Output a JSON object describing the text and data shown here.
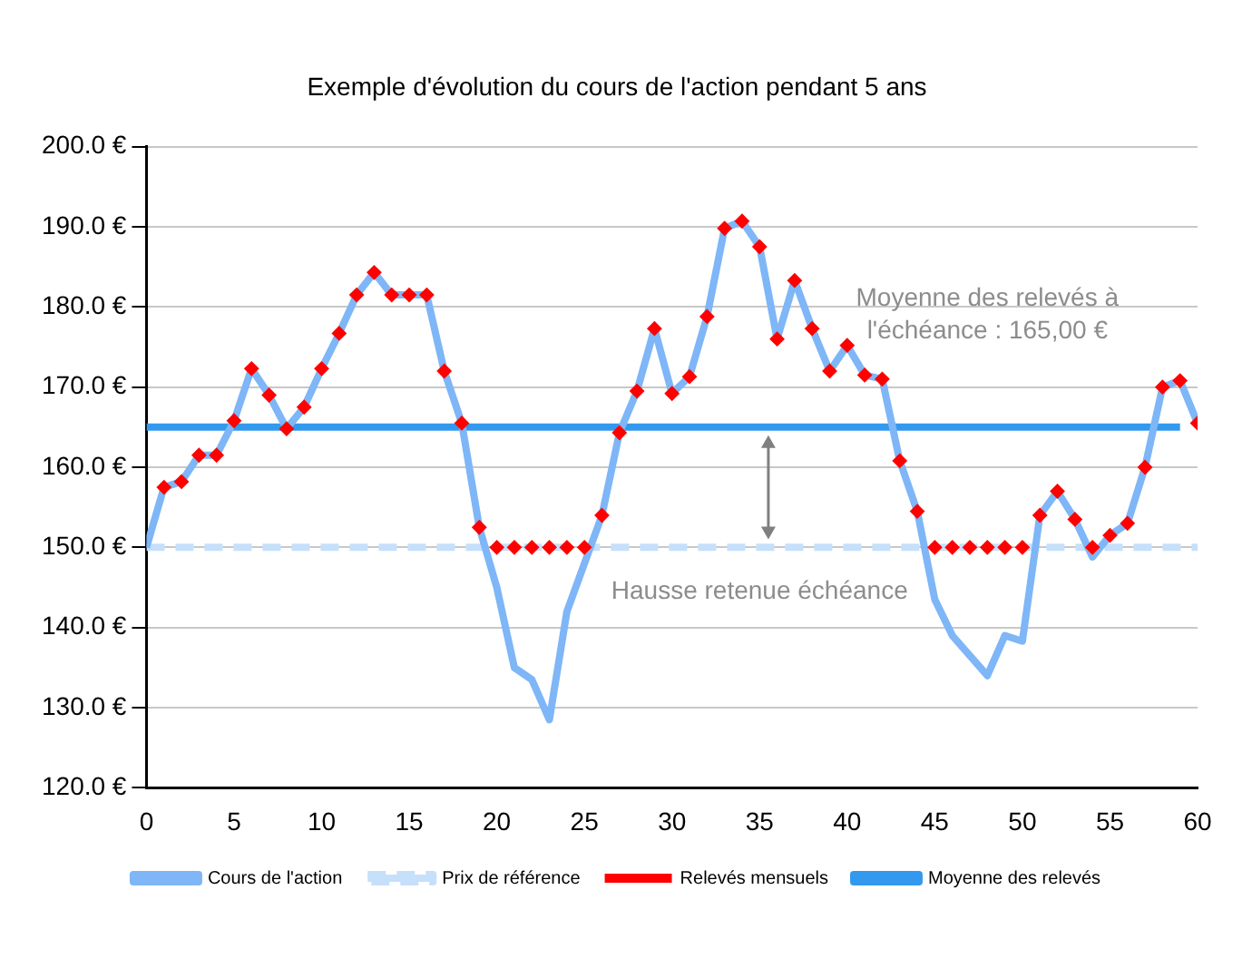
{
  "chart_data": {
    "type": "line",
    "title": "Exemple d'évolution du cours de l'action pendant 5 ans",
    "series": [
      {
        "name": "Cours de l'action",
        "type": "line",
        "color": "#7eb6f7",
        "x": [
          0,
          1,
          2,
          3,
          4,
          5,
          6,
          7,
          8,
          9,
          10,
          11,
          12,
          13,
          14,
          15,
          16,
          17,
          18,
          19,
          20,
          21,
          22,
          23,
          24,
          25,
          26,
          27,
          28,
          29,
          30,
          31,
          32,
          33,
          34,
          35,
          36,
          37,
          38,
          39,
          40,
          41,
          42,
          43,
          44,
          45,
          46,
          47,
          48,
          49,
          50,
          51,
          52,
          53,
          54,
          55,
          56,
          57,
          58,
          59,
          60
        ],
        "values": [
          150,
          157.5,
          158.2,
          161.5,
          161.5,
          165.8,
          172.3,
          169,
          164.8,
          167.5,
          172.3,
          176.7,
          181.5,
          184.3,
          181.5,
          181.5,
          181.5,
          172,
          165.5,
          152.5,
          145,
          135,
          133.5,
          128.5,
          142,
          148,
          154,
          164.3,
          169.5,
          177.3,
          169.2,
          171.3,
          178.8,
          189.8,
          190.7,
          187.5,
          176,
          183.3,
          177.3,
          172,
          175.2,
          171.5,
          171,
          160.8,
          154.5,
          143.5,
          139,
          136.5,
          134,
          139,
          138.3,
          154,
          157,
          153.5,
          148.8,
          151.5,
          153,
          160,
          170,
          170.8,
          165.5
        ]
      },
      {
        "name": "Prix de référence",
        "type": "line",
        "line_style": "dashed",
        "color": "#c6e0fb",
        "x": [
          0,
          60
        ],
        "values": [
          150,
          150
        ]
      },
      {
        "name": "Relevés mensuels",
        "type": "scatter",
        "marker": "diamond",
        "color": "#ff0000",
        "x": [
          1,
          2,
          3,
          4,
          5,
          6,
          7,
          8,
          9,
          10,
          11,
          12,
          13,
          14,
          15,
          16,
          17,
          18,
          19,
          20,
          21,
          22,
          23,
          24,
          25,
          26,
          27,
          28,
          29,
          30,
          31,
          32,
          33,
          34,
          35,
          36,
          37,
          38,
          39,
          40,
          41,
          42,
          43,
          44,
          45,
          46,
          47,
          48,
          49,
          50,
          51,
          52,
          53,
          54,
          55,
          56,
          57,
          58,
          59,
          60
        ],
        "values": [
          157.5,
          158.2,
          161.5,
          161.5,
          165.8,
          172.3,
          169,
          164.8,
          167.5,
          172.3,
          176.7,
          181.5,
          184.3,
          181.5,
          181.5,
          181.5,
          172,
          165.5,
          152.5,
          150,
          150,
          150,
          150,
          150,
          150,
          154,
          164.3,
          169.5,
          177.3,
          169.2,
          171.3,
          178.8,
          189.8,
          190.7,
          187.5,
          176,
          183.3,
          177.3,
          172,
          175.2,
          171.5,
          171,
          160.8,
          154.5,
          150,
          150,
          150,
          150,
          150,
          150,
          154,
          157,
          153.5,
          150,
          151.5,
          153,
          160,
          170,
          170.8,
          165.5
        ]
      },
      {
        "name": "Moyenne des relevés",
        "type": "line",
        "color": "#3399ee",
        "x": [
          0,
          59
        ],
        "values": [
          165,
          165
        ]
      }
    ],
    "xlim": [
      0,
      60
    ],
    "xticks": [
      0,
      5,
      10,
      15,
      20,
      25,
      30,
      35,
      40,
      45,
      50,
      55,
      60
    ],
    "ylim": [
      120,
      200
    ],
    "yticks": [
      {
        "value": 120,
        "label": "120.0 €"
      },
      {
        "value": 130,
        "label": "130.0 €"
      },
      {
        "value": 140,
        "label": "140.0 €"
      },
      {
        "value": 150,
        "label": "150.0 €"
      },
      {
        "value": 160,
        "label": "160.0 €"
      },
      {
        "value": 170,
        "label": "170.0 €"
      },
      {
        "value": 180,
        "label": "180.0 €"
      },
      {
        "value": 190,
        "label": "190.0 €"
      },
      {
        "value": 200,
        "label": "200.0 €"
      }
    ],
    "grid": "y",
    "legend": "bottom",
    "annotations": [
      "Moyenne des relevés à\nl'échéance : 165,00 €",
      "Hausse retenue échéance"
    ]
  }
}
